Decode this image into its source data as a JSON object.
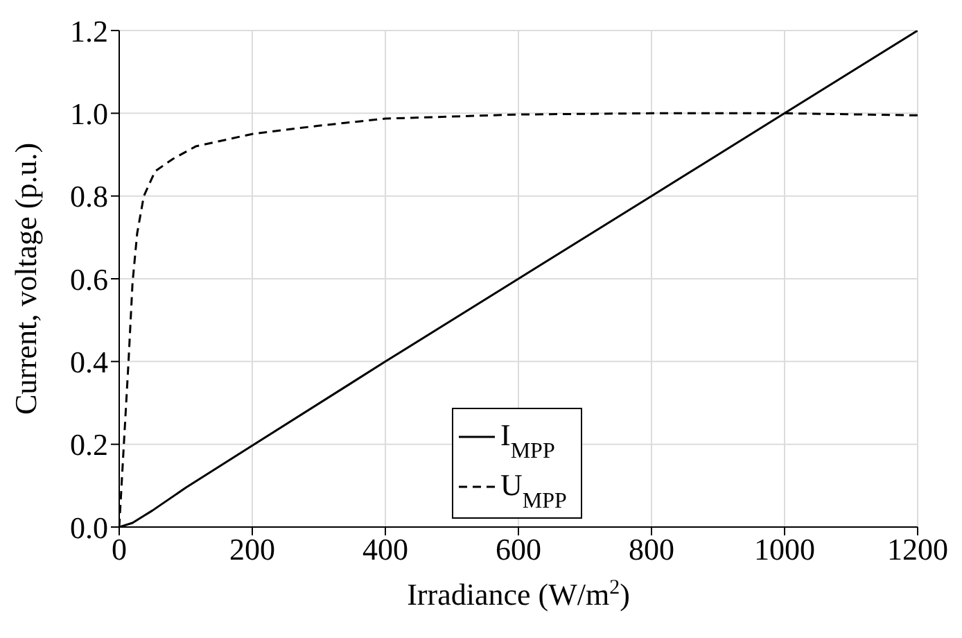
{
  "chart_data": {
    "type": "line",
    "xlabel": "Irradiance (W/m$^{2}$)",
    "ylabel": "Current, voltage (p.u.)",
    "xlim": [
      0,
      1200
    ],
    "ylim": [
      0,
      1.2
    ],
    "xticks": [
      0,
      200,
      400,
      600,
      800,
      1000,
      1200
    ],
    "yticks": [
      {
        "value": 0,
        "label": "0.0"
      },
      {
        "value": 0.2,
        "label": "0.2"
      },
      {
        "value": 0.4,
        "label": "0.4"
      },
      {
        "value": 0.6,
        "label": "0.6"
      },
      {
        "value": 0.8,
        "label": "0.8"
      },
      {
        "value": 1,
        "label": "1.0"
      },
      {
        "value": 1.2,
        "label": "1.2"
      }
    ],
    "grid": true,
    "legend": "bottom",
    "marker": "none",
    "series": [
      {
        "name": "I$_{MPP}$",
        "color": "#000000",
        "line_style": "solid",
        "x": [
          0,
          20,
          35,
          50,
          100,
          200,
          400,
          600,
          800,
          1000,
          1200
        ],
        "values": [
          0,
          0.01,
          0.025,
          0.04,
          0.095,
          0.197,
          0.4,
          0.6,
          0.8,
          1.0,
          1.2
        ]
      },
      {
        "name": "U$_{MPP}$",
        "color": "#000000",
        "line_style": "dashed",
        "x": [
          0,
          7,
          14,
          20,
          27,
          37,
          54,
          81,
          115,
          200,
          300,
          400,
          600,
          800,
          1000,
          1200
        ],
        "values": [
          0,
          0.2,
          0.4,
          0.59,
          0.71,
          0.8,
          0.86,
          0.89,
          0.92,
          0.95,
          0.97,
          0.987,
          0.997,
          1.0,
          1.0,
          0.995
        ]
      }
    ]
  }
}
